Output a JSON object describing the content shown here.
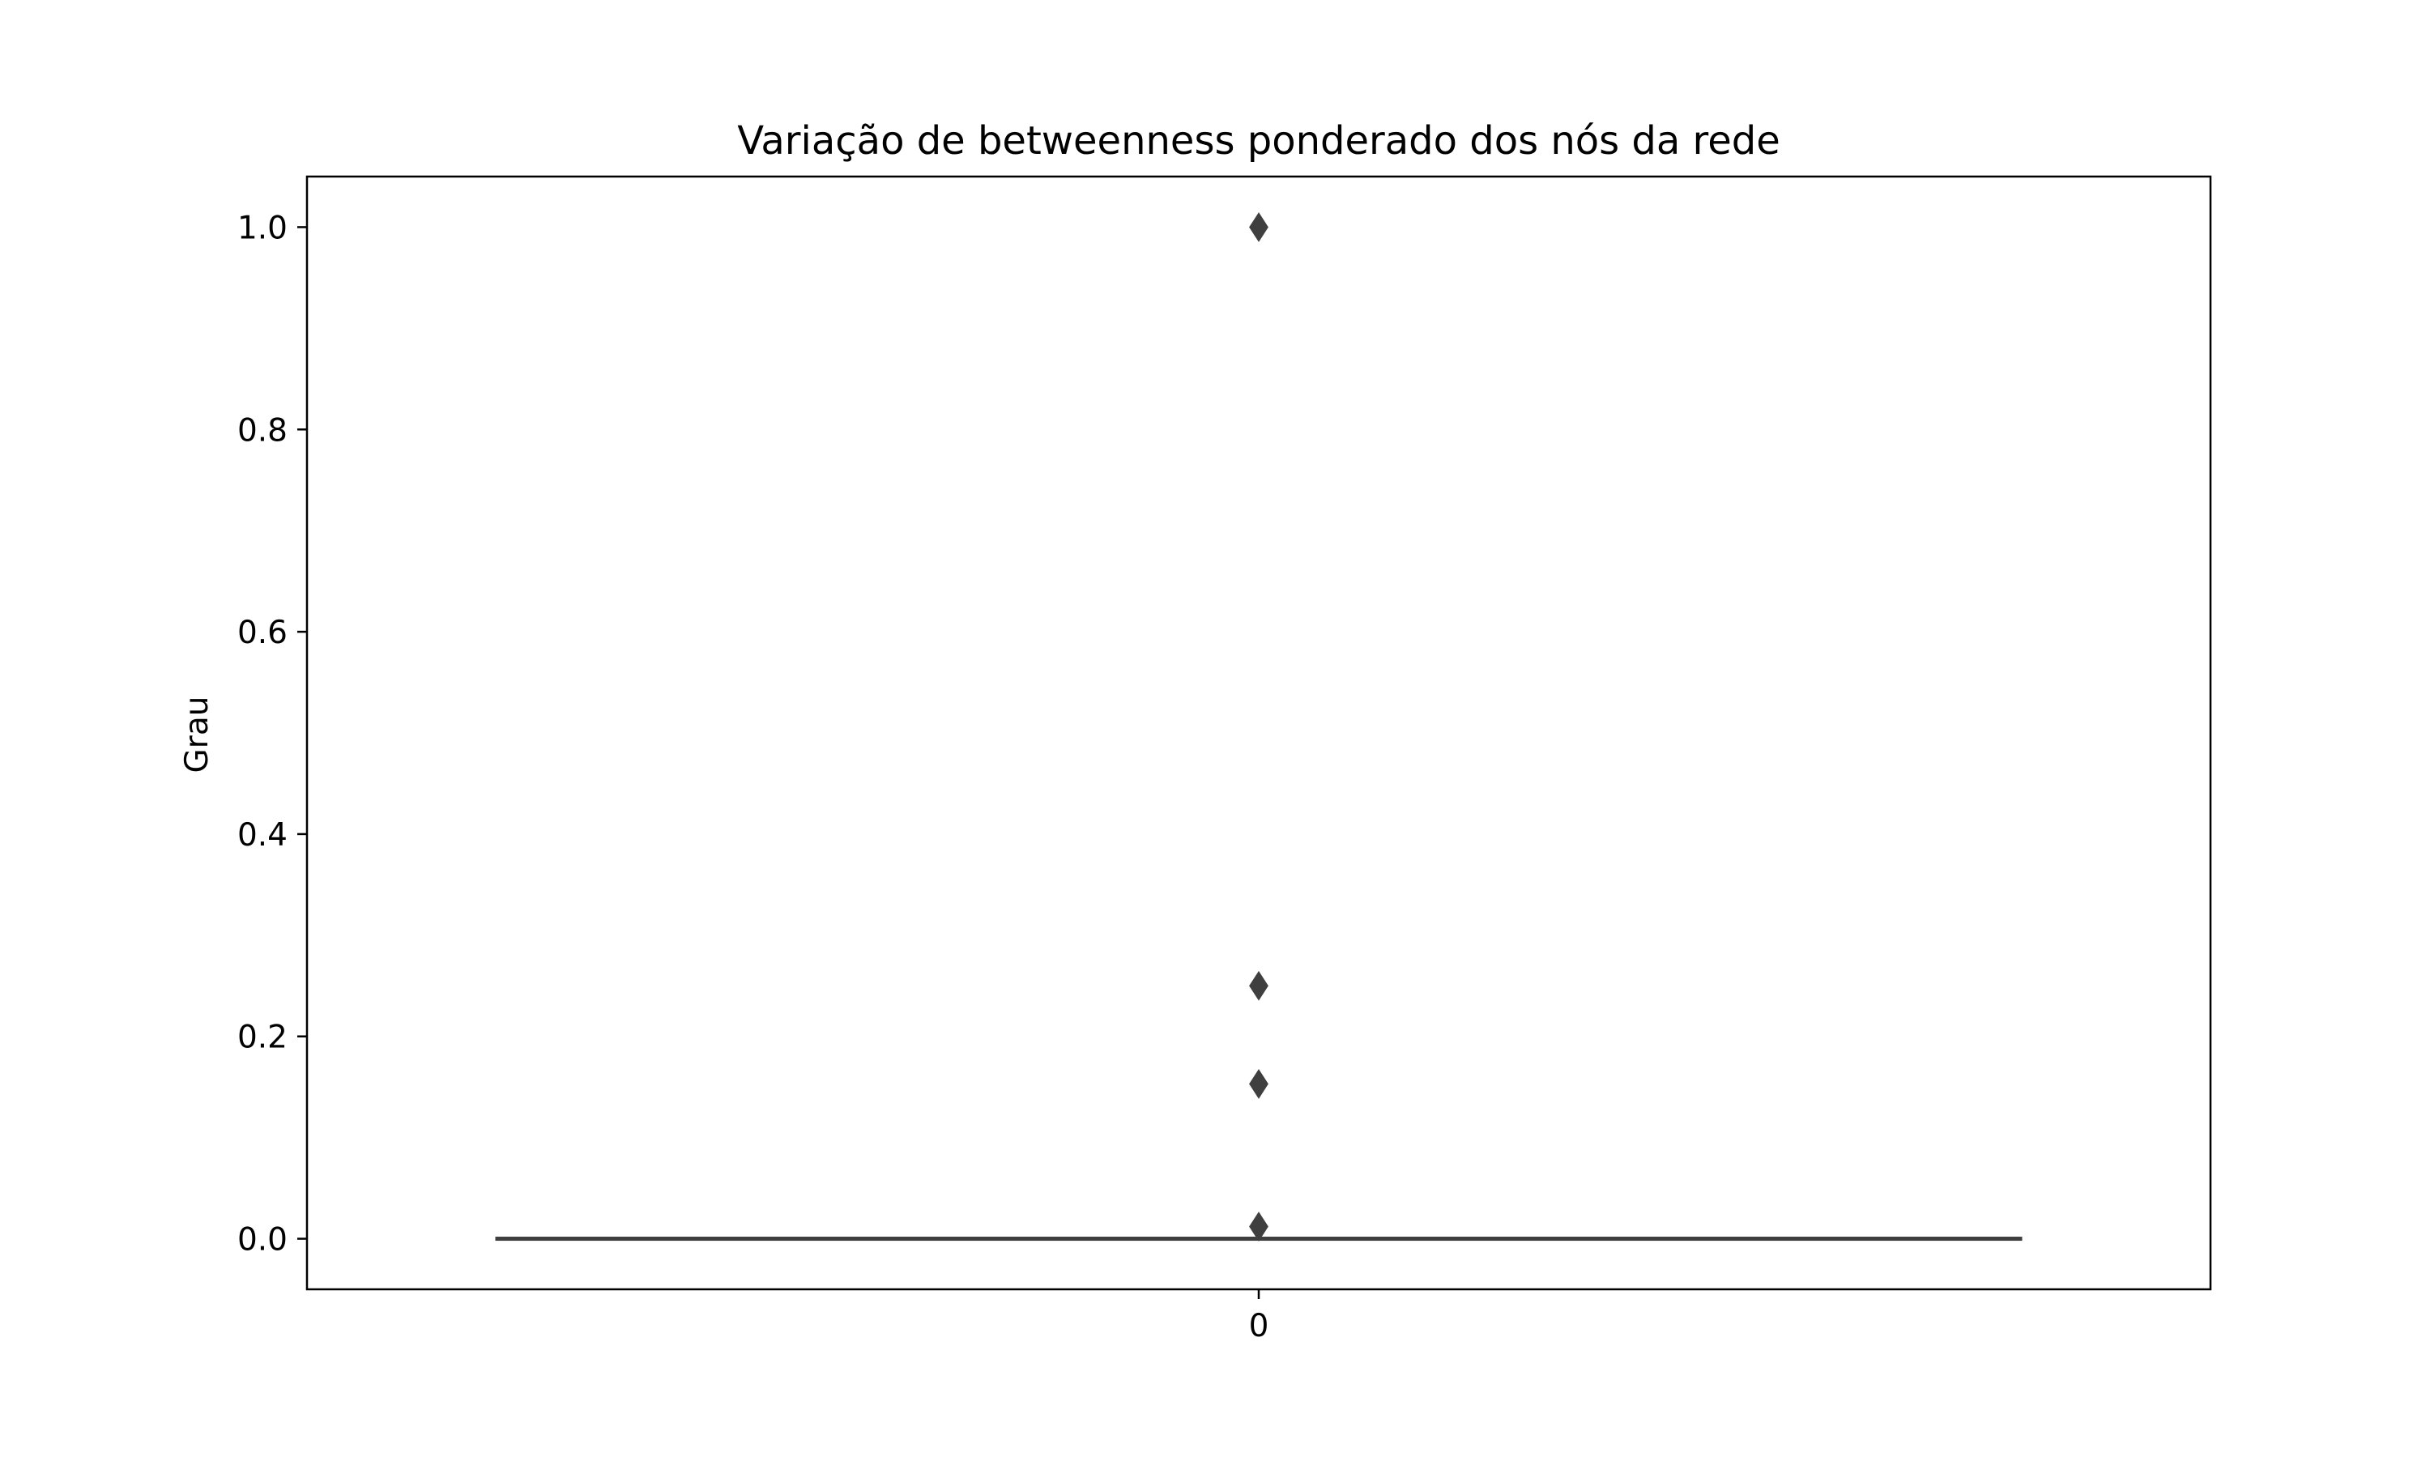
{
  "chart_data": {
    "type": "box",
    "title": "Variação de betweenness ponderado dos nós da rede",
    "xlabel": "",
    "ylabel": "Grau",
    "categories": [
      "0"
    ],
    "ylim": [
      -0.05,
      1.05
    ],
    "yticks": [
      0.0,
      0.2,
      0.4,
      0.6,
      0.8,
      1.0
    ],
    "ytick_labels": [
      "0.0",
      "0.2",
      "0.4",
      "0.6",
      "0.8",
      "1.0"
    ],
    "grid": false,
    "legend": null,
    "series": [
      {
        "category": "0",
        "box": {
          "min": 0.0,
          "q1": 0.0,
          "median": 0.0,
          "q3": 0.0,
          "max": 0.0
        },
        "outliers": [
          1.0,
          0.25,
          0.153,
          0.012
        ]
      }
    ],
    "colors": {
      "box_line": "#3f3f3f",
      "outlier_fill": "#3f3f3f",
      "axes": "#000000"
    }
  }
}
